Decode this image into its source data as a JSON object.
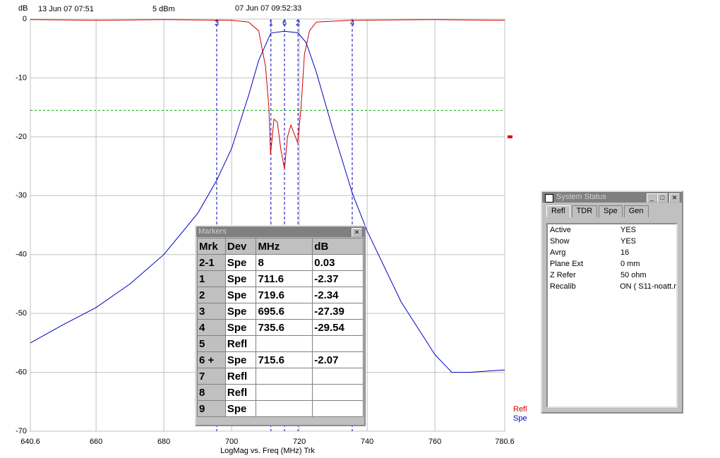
{
  "chart_data": {
    "type": "line",
    "y_unit": "dB",
    "date_left": "13 Jun 07  07:51",
    "power": "5 dBm",
    "date_center": "07 Jun 07  09:52:33",
    "xlabel": "LogMag vs. Freq (MHz)  Trk",
    "xlim": [
      640.6,
      780.6
    ],
    "xticks": [
      640.6,
      660,
      680,
      700,
      720,
      740,
      760,
      780.6
    ],
    "ylim": [
      -70,
      0
    ],
    "yticks": [
      0,
      -10,
      -20,
      -30,
      -40,
      -50,
      -60,
      -70
    ],
    "grid": true,
    "series": [
      {
        "name": "Refl",
        "color": "#d00000",
        "x": [
          640.6,
          660,
          680,
          700,
          705,
          708,
          710,
          711,
          711.5,
          712.5,
          713.5,
          714.5,
          715.6,
          716.5,
          717.5,
          718.5,
          719.5,
          720.5,
          721.5,
          723,
          725,
          735,
          760,
          780.6
        ],
        "values": [
          -0.1,
          -0.2,
          -0.1,
          -0.2,
          -0.5,
          -2,
          -8,
          -15,
          -23,
          -17,
          -17.5,
          -22,
          -25.5,
          -20,
          -18,
          -19.5,
          -21,
          -15,
          -6,
          -2,
          -0.5,
          -0.2,
          -0.1,
          -0.2
        ]
      },
      {
        "name": "Spe",
        "color": "#0000c0",
        "x": [
          640.6,
          650,
          660,
          670,
          680,
          690,
          695.6,
          700,
          705,
          708,
          711.6,
          715.6,
          719.6,
          722,
          725,
          730,
          735.6,
          740,
          750,
          760,
          765,
          770,
          780.6
        ],
        "values": [
          -55,
          -52,
          -49,
          -45,
          -40,
          -33,
          -27.39,
          -22,
          -13,
          -7,
          -2.37,
          -2.07,
          -2.34,
          -4,
          -9,
          -19,
          -29.54,
          -36,
          -48,
          -57,
          -60,
          -60,
          -59.6
        ]
      }
    ],
    "markers": [
      {
        "label": "3",
        "x": 695.6
      },
      {
        "label": "1",
        "x": 711.6
      },
      {
        "label": "6",
        "x": 715.6
      },
      {
        "label": "2",
        "x": 719.6
      },
      {
        "label": "4",
        "x": 735.6
      }
    ],
    "ref_line": -15.5,
    "ref_marker": -20
  },
  "markers_window": {
    "title": "Markers",
    "header": [
      "Mrk",
      "Dev",
      "MHz",
      "dB"
    ],
    "rows": [
      [
        "2-1",
        "Spe",
        "8",
        "0.03"
      ],
      [
        "1",
        "Spe",
        "711.6",
        "-2.37"
      ],
      [
        "2",
        "Spe",
        "719.6",
        "-2.34"
      ],
      [
        "3",
        "Spe",
        "695.6",
        "-27.39"
      ],
      [
        "4",
        "Spe",
        "735.6",
        "-29.54"
      ],
      [
        "5",
        "Refl"
      ],
      [
        "6  +",
        "Spe",
        "715.6",
        "-2.07"
      ],
      [
        "7",
        "Refl"
      ],
      [
        "8",
        "Refl"
      ],
      [
        "9",
        "Spe"
      ]
    ]
  },
  "status_window": {
    "title": "System Status",
    "tabs": [
      "Refl",
      "TDR",
      "Spe",
      "Gen"
    ],
    "rows": [
      [
        "Active",
        "YES"
      ],
      [
        "Show",
        "YES"
      ],
      [
        "Avrg",
        "16"
      ],
      [
        "Plane Ext",
        "0 mm"
      ],
      [
        "Z Refer",
        "50 ohm"
      ],
      [
        "Recalib",
        "ON ( S11-noatt.r"
      ]
    ]
  }
}
